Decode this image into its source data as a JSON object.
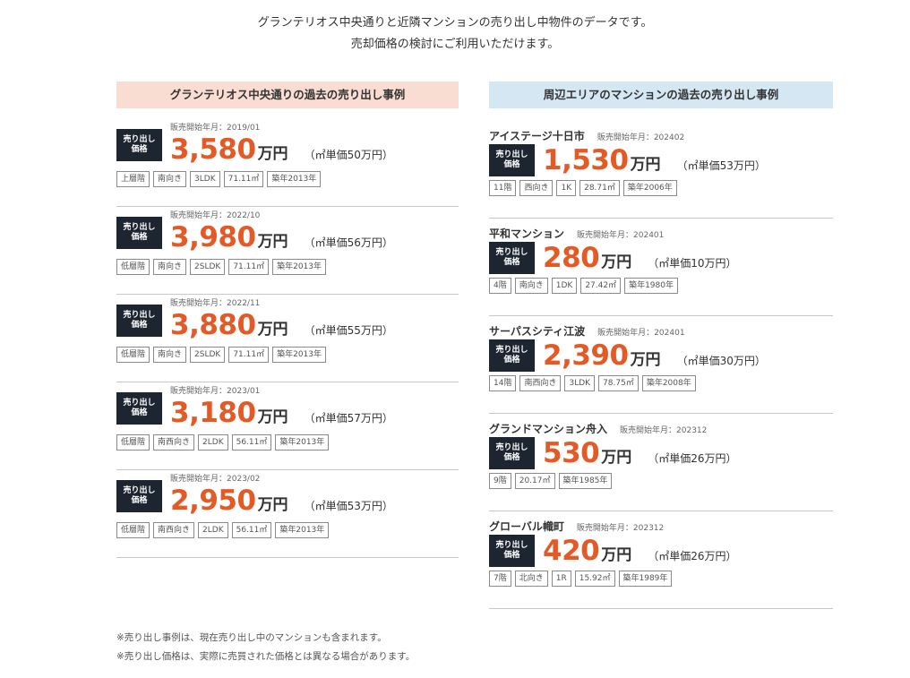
{
  "intro": {
    "line1": "グランテリオス中央通りと近隣マンションの売り出し中物件のデータです。",
    "line2": "売却価格の検討にご利用いただけます。"
  },
  "left": {
    "heading": "グランテリオス中央通りの過去の売り出し事例",
    "badge_line1": "売り出し",
    "badge_line2": "価格",
    "date_label": "販売開始年月：",
    "items": [
      {
        "date": "2019/01",
        "price": "3,580",
        "unit": "万円",
        "tsubo": "（㎡単価50万円）",
        "tags": [
          "上層階",
          "南向き",
          "3LDK",
          "71.11㎡",
          "築年2013年"
        ]
      },
      {
        "date": "2022/10",
        "price": "3,980",
        "unit": "万円",
        "tsubo": "（㎡単価56万円）",
        "tags": [
          "低層階",
          "南向き",
          "2SLDK",
          "71.11㎡",
          "築年2013年"
        ]
      },
      {
        "date": "2022/11",
        "price": "3,880",
        "unit": "万円",
        "tsubo": "（㎡単価55万円）",
        "tags": [
          "低層階",
          "南向き",
          "2SLDK",
          "71.11㎡",
          "築年2013年"
        ]
      },
      {
        "date": "2023/01",
        "price": "3,180",
        "unit": "万円",
        "tsubo": "（㎡単価57万円）",
        "tags": [
          "低層階",
          "南西向き",
          "2LDK",
          "56.11㎡",
          "築年2013年"
        ]
      },
      {
        "date": "2023/02",
        "price": "2,950",
        "unit": "万円",
        "tsubo": "（㎡単価53万円）",
        "tags": [
          "低層階",
          "南西向き",
          "2LDK",
          "56.11㎡",
          "築年2013年"
        ]
      }
    ]
  },
  "right": {
    "heading": "周辺エリアのマンションの過去の売り出し事例",
    "badge_line1": "売り出し",
    "badge_line2": "価格",
    "date_label": "販売開始年月：",
    "items": [
      {
        "name": "アイステージ十日市",
        "date": "202402",
        "price": "1,530",
        "unit": "万円",
        "tsubo": "（㎡単価53万円）",
        "tags": [
          "11階",
          "西向き",
          "1K",
          "28.71㎡",
          "築年2006年"
        ]
      },
      {
        "name": "平和マンション",
        "date": "202401",
        "price": "280",
        "unit": "万円",
        "tsubo": "（㎡単価10万円）",
        "tags": [
          "4階",
          "南向き",
          "1DK",
          "27.42㎡",
          "築年1980年"
        ]
      },
      {
        "name": "サーパスシティ江波",
        "date": "202401",
        "price": "2,390",
        "unit": "万円",
        "tsubo": "（㎡単価30万円）",
        "tags": [
          "14階",
          "南西向き",
          "3LDK",
          "78.75㎡",
          "築年2008年"
        ]
      },
      {
        "name": "グランドマンション舟入",
        "date": "202312",
        "price": "530",
        "unit": "万円",
        "tsubo": "（㎡単価26万円）",
        "tags": [
          "9階",
          "20.17㎡",
          "築年1985年"
        ]
      },
      {
        "name": "グローバル幟町",
        "date": "202312",
        "price": "420",
        "unit": "万円",
        "tsubo": "（㎡単価26万円）",
        "tags": [
          "7階",
          "北向き",
          "1R",
          "15.92㎡",
          "築年1989年"
        ]
      }
    ]
  },
  "notes": {
    "line1": "※売り出し事例は、現在売り出し中のマンションも含まれます。",
    "line2": "※売り出し価格は、実際に売買された価格とは異なる場合があります。"
  }
}
